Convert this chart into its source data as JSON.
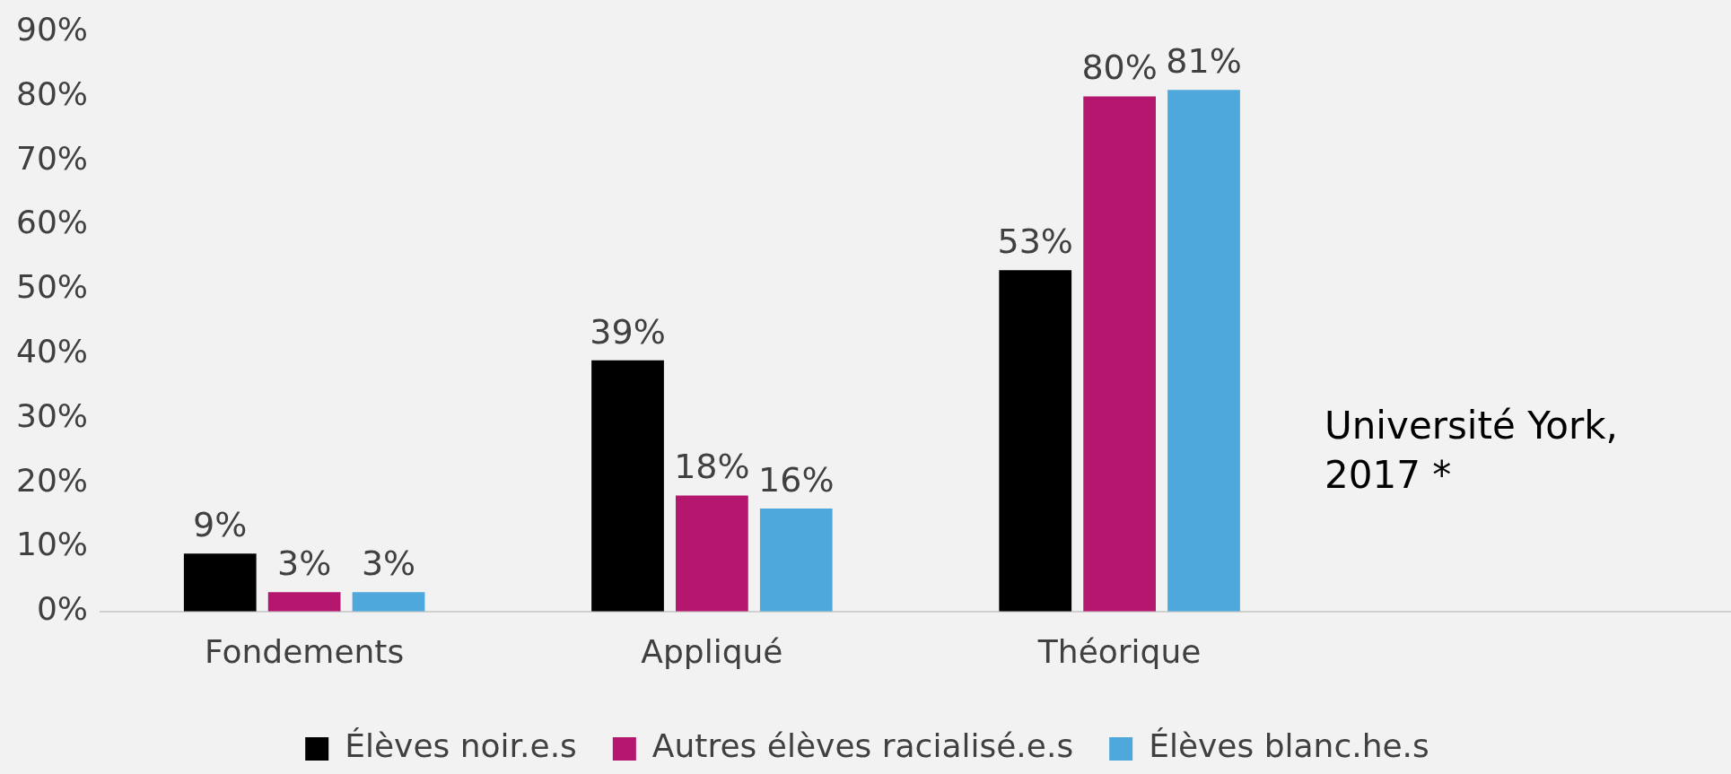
{
  "chart_data": {
    "type": "bar",
    "categories": [
      "Fondements",
      "Appliqué",
      "Théorique",
      null
    ],
    "series": [
      {
        "name": "Élèves noir.e.s",
        "color": "#000000",
        "values": [
          9,
          39,
          53,
          null
        ]
      },
      {
        "name": "Autres élèves racialisé.e.s",
        "color": "#b5176e",
        "values": [
          3,
          18,
          80,
          null
        ]
      },
      {
        "name": "Élèves blanc.he.s",
        "color": "#4fa8dc",
        "values": [
          3,
          16,
          81,
          null
        ]
      }
    ],
    "ylim": [
      0,
      90
    ],
    "yticks": [
      {
        "value": 0,
        "label": "0%"
      },
      {
        "value": 10,
        "label": "10%"
      },
      {
        "value": 20,
        "label": "20%"
      },
      {
        "value": 30,
        "label": "30%"
      },
      {
        "value": 40,
        "label": "40%"
      },
      {
        "value": 50,
        "label": "50%"
      },
      {
        "value": 60,
        "label": "60%"
      },
      {
        "value": 70,
        "label": "70%"
      },
      {
        "value": 80,
        "label": "80%"
      },
      {
        "value": 90,
        "label": "90%"
      }
    ],
    "value_labels": [
      [
        "9%",
        "39%",
        "53%",
        null
      ],
      [
        "3%",
        "18%",
        "80%",
        null
      ],
      [
        "3%",
        "16%",
        "81%",
        null
      ]
    ],
    "annotations": [
      "Université York, 2017 *"
    ],
    "grid": false,
    "legend": "bottom"
  }
}
